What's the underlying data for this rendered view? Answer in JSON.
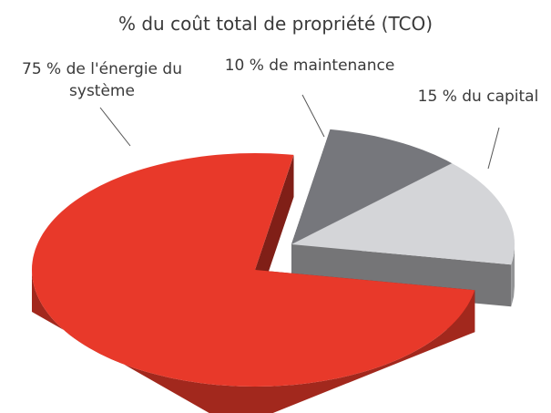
{
  "chart_data": {
    "type": "pie",
    "title": "% du coût total de propriété (TCO)",
    "values": [
      75,
      10,
      15
    ],
    "value_labels": [
      "75 % de l'énergie du système",
      "10 % de maintenance",
      "15 % du capital"
    ],
    "colors": [
      "#e8392a",
      "#76777c",
      "#d4d5d8"
    ]
  }
}
